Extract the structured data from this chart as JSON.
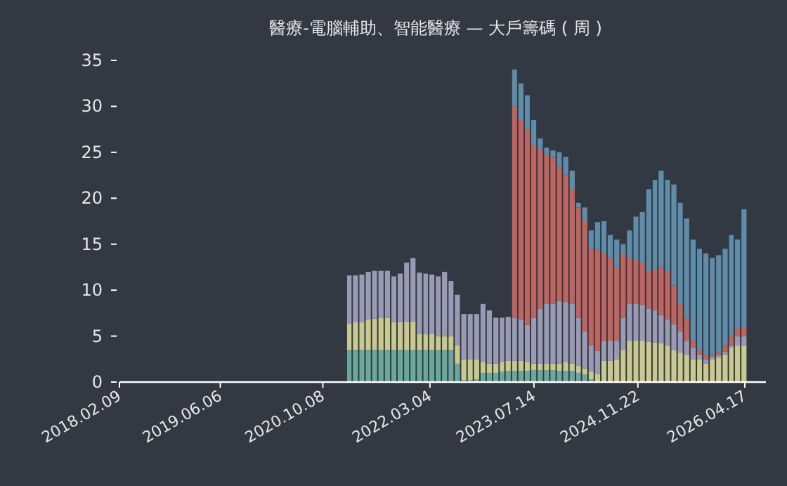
{
  "chart_data": {
    "type": "bar",
    "stacked": true,
    "title": "醫療-電腦輔助、智能醫療 — 大戶籌碼 ( 周 )",
    "x": [
      "2021-02",
      "2021-03",
      "2021-04",
      "2021-05",
      "2021-06",
      "2021-07",
      "2021-08",
      "2021-09",
      "2021-10",
      "2021-11",
      "2021-12",
      "2022-01",
      "2022-02",
      "2022-03",
      "2022-04",
      "2022-05",
      "2022-06",
      "2022-07",
      "2022-08",
      "2022-09",
      "2022-10",
      "2022-11",
      "2022-12",
      "2023-01",
      "2023-02",
      "2023-03",
      "2023-04",
      "2023-05",
      "2023-06",
      "2023-07",
      "2023-08",
      "2023-09",
      "2023-10",
      "2023-11",
      "2023-12",
      "2024-01",
      "2024-02",
      "2024-03",
      "2024-04",
      "2024-05",
      "2024-06",
      "2024-07",
      "2024-08",
      "2024-09",
      "2024-10",
      "2024-11",
      "2024-12",
      "2025-01",
      "2025-02",
      "2025-03",
      "2025-04",
      "2025-05",
      "2025-06",
      "2025-07",
      "2025-08",
      "2025-09",
      "2025-10",
      "2025-11",
      "2025-12",
      "2026-01",
      "2026-02",
      "2026-03",
      "2026-04"
    ],
    "series": [
      {
        "color": "#6aa89c",
        "values": [
          3.5,
          3.5,
          3.5,
          3.5,
          3.5,
          3.5,
          3.5,
          3.5,
          3.5,
          3.5,
          3.5,
          3.5,
          3.5,
          3.5,
          3.5,
          3.5,
          3.5,
          2.0,
          0.2,
          0.2,
          0.3,
          1.0,
          1.0,
          1.0,
          1.1,
          1.2,
          1.2,
          1.2,
          1.2,
          1.3,
          1.3,
          1.3,
          1.3,
          1.2,
          1.2,
          1.2,
          1.0,
          0.8,
          0.3,
          null,
          null,
          null,
          null,
          null,
          null,
          null,
          null,
          null,
          null,
          null,
          null,
          null,
          null,
          null,
          null,
          null,
          null,
          null,
          null,
          null,
          null,
          null,
          null
        ]
      },
      {
        "color": "#c9c98f",
        "values": [
          2.9,
          3.0,
          3.0,
          3.3,
          3.4,
          3.5,
          3.5,
          3.0,
          3.0,
          3.1,
          3.1,
          1.8,
          1.7,
          1.7,
          1.5,
          1.5,
          1.5,
          2.0,
          2.3,
          2.3,
          2.2,
          1.2,
          1.0,
          1.0,
          1.1,
          1.1,
          1.1,
          1.1,
          1.0,
          0.7,
          0.7,
          0.7,
          0.7,
          0.8,
          1.0,
          0.8,
          0.8,
          0.7,
          0.9,
          0.9,
          2.3,
          2.3,
          2.5,
          3.5,
          4.5,
          4.5,
          4.5,
          4.4,
          4.3,
          4.2,
          4.0,
          3.5,
          3.2,
          3.0,
          2.5,
          2.5,
          2.0,
          2.5,
          2.7,
          3.0,
          3.8,
          4.0,
          4.0
        ]
      },
      {
        "color": "#9b9ab5",
        "values": [
          5.2,
          5.1,
          5.2,
          5.2,
          5.2,
          5.1,
          5.1,
          5.0,
          5.3,
          6.4,
          6.9,
          6.6,
          6.6,
          6.5,
          6.5,
          7.0,
          6.0,
          5.5,
          4.9,
          4.9,
          4.9,
          6.3,
          5.8,
          5.0,
          4.8,
          4.8,
          4.7,
          4.5,
          4.0,
          5.0,
          6.0,
          6.5,
          6.5,
          6.8,
          6.5,
          6.5,
          5.2,
          4.0,
          2.8,
          2.5,
          2.2,
          2.2,
          2.0,
          3.5,
          4.0,
          4.0,
          3.9,
          3.6,
          3.5,
          3.1,
          2.8,
          2.8,
          2.3,
          1.5,
          1.3,
          0.5,
          0.5,
          0.3,
          0.2,
          0.3,
          0.2,
          1.0,
          1.0
        ]
      },
      {
        "color": "#c0645f",
        "values": [
          null,
          null,
          null,
          null,
          null,
          null,
          null,
          null,
          null,
          null,
          null,
          null,
          null,
          null,
          null,
          null,
          null,
          null,
          null,
          null,
          null,
          null,
          null,
          null,
          null,
          null,
          23.0,
          21.7,
          21.3,
          18.8,
          17.3,
          16.3,
          16.0,
          14.7,
          13.8,
          12.5,
          12.0,
          12.0,
          10.5,
          11.0,
          9.5,
          9.0,
          8.0,
          7.0,
          5.0,
          4.8,
          4.6,
          4.0,
          4.5,
          5.2,
          5.2,
          4.2,
          3.0,
          2.5,
          0.7,
          0.5,
          0.4,
          0.2,
          0.3,
          0.7,
          1.0,
          0.8,
          1.0
        ]
      },
      {
        "color": "#5f8ca8",
        "values": [
          null,
          null,
          null,
          null,
          null,
          null,
          null,
          null,
          null,
          null,
          null,
          null,
          null,
          null,
          null,
          null,
          null,
          null,
          null,
          null,
          null,
          null,
          null,
          null,
          null,
          null,
          4.0,
          4.0,
          3.7,
          2.7,
          1.2,
          0.7,
          0.7,
          1.5,
          2.0,
          2.0,
          0.5,
          1.5,
          2.0,
          3.0,
          3.5,
          2.5,
          3.0,
          1.0,
          3.0,
          4.7,
          5.5,
          9.0,
          9.7,
          10.5,
          10.0,
          11.0,
          11.0,
          10.8,
          11.0,
          11.0,
          11.1,
          10.5,
          10.6,
          10.5,
          11.0,
          9.7,
          12.8
        ]
      }
    ],
    "xlim": [
      "2018-02-09",
      "2026-07-27"
    ],
    "xticks": [
      {
        "value": "2018-02-09",
        "label": "2018.02.09"
      },
      {
        "value": "2019-06-06",
        "label": "2019.06.06"
      },
      {
        "value": "2020-10-08",
        "label": "2020.10.08"
      },
      {
        "value": "2022-03-04",
        "label": "2022.03.04"
      },
      {
        "value": "2023-07-14",
        "label": "2023.07.14"
      },
      {
        "value": "2024-11-22",
        "label": "2024.11.22"
      },
      {
        "value": "2026-04-17",
        "label": "2026.04.17"
      }
    ],
    "ylim": [
      0,
      35
    ],
    "yticks": [
      0,
      5,
      10,
      15,
      20,
      25,
      30,
      35
    ]
  }
}
